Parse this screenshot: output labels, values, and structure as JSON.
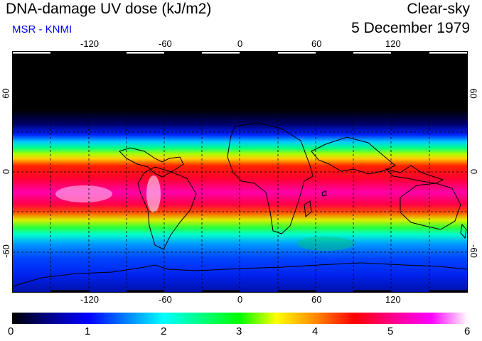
{
  "header": {
    "title": "DNA-damage UV dose (kJ/m2)",
    "source": "MSR - KNMI",
    "condition": "Clear-sky",
    "date": "5 December 1979"
  },
  "map": {
    "x_ticks": [
      "-120",
      "-60",
      "0",
      "60",
      "120"
    ],
    "x_tick_values": [
      -120,
      -60,
      0,
      60,
      120
    ],
    "y_ticks": [
      "60",
      "0",
      "-60"
    ],
    "y_tick_values": [
      60,
      0,
      -60
    ],
    "lon_range": [
      -180,
      180
    ],
    "lat_range": [
      -90,
      90
    ],
    "peak_band": "about 0 to 30 S"
  },
  "colorbar": {
    "labels": [
      "0",
      "1",
      "2",
      "3",
      "4",
      "5",
      "6"
    ],
    "min": 0,
    "max": 6,
    "colors": [
      "#000000",
      "#0000ff",
      "#00ffff",
      "#00ff00",
      "#ffff00",
      "#ff0000",
      "#ff00ff",
      "#ffffff"
    ]
  },
  "colors": {
    "source_text": "#0000ff",
    "coast": "#000000",
    "grid": "#000000"
  }
}
